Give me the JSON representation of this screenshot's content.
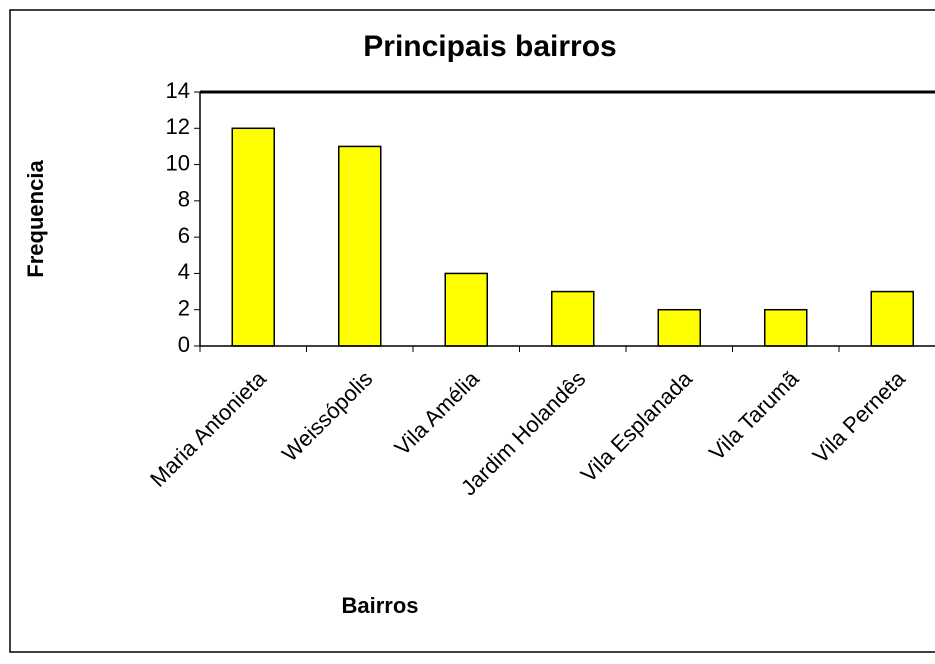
{
  "chart_data": {
    "type": "bar",
    "title": "Principais bairros",
    "x_label": "Bairros",
    "y_label": "Frequencia",
    "categories": [
      "Maria Antonieta",
      "Weissópolis",
      "Vila Amélia",
      "Jardim Holandês",
      "Vila Esplanada",
      "Vila Tarumã",
      "Vila Perneta"
    ],
    "values": [
      12,
      11,
      4,
      3,
      2,
      2,
      3
    ],
    "color": "#ffff00",
    "ylim": [
      0,
      14
    ],
    "yticks": [
      0,
      2,
      4,
      6,
      8,
      10,
      12,
      14
    ],
    "grid": false
  }
}
